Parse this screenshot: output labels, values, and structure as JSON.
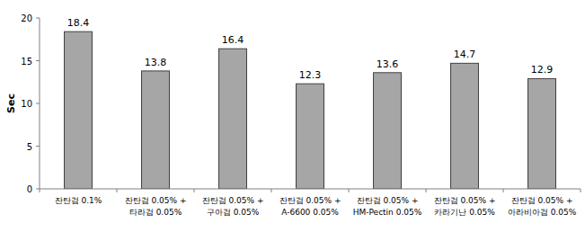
{
  "chart_data": {
    "type": "bar",
    "y_label": "Sec",
    "categories": [
      "잔탄검 0.1%",
      "잔탄검 0.05% +\n타라검 0.05%",
      "잔탄검 0.05% +\n구아검 0.05%",
      "잔탄검 0.05% +\nA-6600 0.05%",
      "잔탄검 0.05% +\nHM-Pectin 0.05%",
      "잔탄검 0.05% +\n카라기난 0.05%",
      "잔탄검 0.05% +\n아라비아검 0.05%"
    ],
    "values": [
      18.4,
      13.8,
      16.4,
      12.3,
      13.6,
      14.7,
      12.9
    ],
    "color": "#a6a6a6",
    "ylim": [
      0,
      20
    ],
    "yticks": [
      0,
      5,
      10,
      15,
      20
    ],
    "grid": false,
    "data_labels": true
  }
}
